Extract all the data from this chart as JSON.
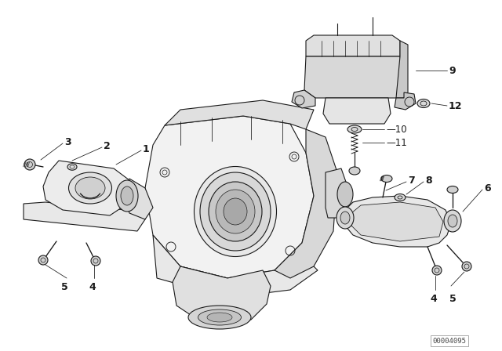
{
  "background_color": "#ffffff",
  "diagram_color": "#1a1a1a",
  "diagram_id": "00004095",
  "label_fontsize": 8,
  "font_family": "DejaVu Sans"
}
